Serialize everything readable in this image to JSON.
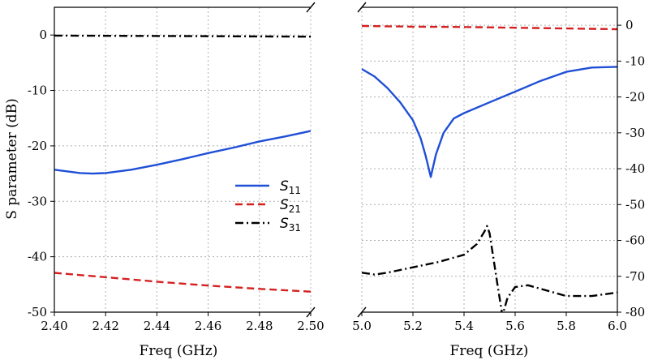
{
  "chart_data": {
    "type": "line",
    "ylabel": "S parameter (dB)",
    "ylim": [
      -50,
      5
    ],
    "grid": true,
    "legend": {
      "placement": "center",
      "entries": [
        {
          "symbol": "S",
          "subscript": "11",
          "color": "#1f4fd6",
          "dash": "solid"
        },
        {
          "symbol": "S",
          "subscript": "21",
          "color": "#d62020",
          "dash": "dashed"
        },
        {
          "symbol": "S",
          "subscript": "31",
          "color": "#000000",
          "dash": "dashdot"
        }
      ]
    },
    "panels": [
      {
        "name": "left",
        "xlabel": "Freq (GHz)",
        "xlim": [
          2.4,
          2.5
        ],
        "xticks": [
          "2.40",
          "2.42",
          "2.44",
          "2.46",
          "2.48",
          "2.50"
        ],
        "ylim": [
          -50,
          5
        ],
        "yticks": [
          "0",
          "-10",
          "-20",
          "-30",
          "-40",
          "-50"
        ],
        "ytick_side": "left",
        "series": [
          {
            "key": "S11",
            "x": [
              2.4,
              2.41,
              2.415,
              2.42,
              2.43,
              2.44,
              2.45,
              2.46,
              2.47,
              2.48,
              2.49,
              2.5
            ],
            "y": [
              -24.3,
              -24.9,
              -25.0,
              -24.9,
              -24.3,
              -23.4,
              -22.4,
              -21.3,
              -20.3,
              -19.2,
              -18.3,
              -17.3
            ]
          },
          {
            "key": "S21",
            "x": [
              2.4,
              2.42,
              2.44,
              2.46,
              2.48,
              2.5
            ],
            "y": [
              -42.9,
              -43.7,
              -44.5,
              -45.2,
              -45.8,
              -46.3
            ]
          },
          {
            "key": "S31",
            "x": [
              2.4,
              2.45,
              2.5
            ],
            "y": [
              -0.1,
              -0.2,
              -0.3
            ]
          }
        ]
      },
      {
        "name": "right",
        "xlabel": "Freq (GHz)",
        "xlim": [
          5.0,
          6.0
        ],
        "xticks": [
          "5.0",
          "5.2",
          "5.4",
          "5.6",
          "5.8",
          "6.0"
        ],
        "ylim": [
          -80,
          5
        ],
        "yticks": [
          "0",
          "-10",
          "-20",
          "-30",
          "-40",
          "-50",
          "-60",
          "-70",
          "-80"
        ],
        "ytick_side": "right",
        "series": [
          {
            "key": "S11",
            "x": [
              5.0,
              5.05,
              5.1,
              5.15,
              5.2,
              5.23,
              5.25,
              5.27,
              5.29,
              5.32,
              5.36,
              5.4,
              5.5,
              5.6,
              5.7,
              5.8,
              5.9,
              6.0
            ],
            "y": [
              -12.2,
              -14.3,
              -17.5,
              -21.5,
              -26.5,
              -31.5,
              -36.5,
              -42.3,
              -36.0,
              -30.0,
              -26.0,
              -24.5,
              -21.5,
              -18.5,
              -15.5,
              -13.0,
              -11.8,
              -11.6
            ]
          },
          {
            "key": "S21",
            "x": [
              5.0,
              5.2,
              5.4,
              5.6,
              5.8,
              6.0
            ],
            "y": [
              -0.2,
              -0.4,
              -0.5,
              -0.7,
              -0.9,
              -1.1
            ]
          },
          {
            "key": "S31",
            "x": [
              5.0,
              5.05,
              5.1,
              5.2,
              5.3,
              5.4,
              5.45,
              5.48,
              5.49,
              5.5,
              5.53,
              5.55,
              5.57,
              5.6,
              5.65,
              5.7,
              5.8,
              5.9,
              6.0
            ],
            "y": [
              -69.0,
              -69.5,
              -69.0,
              -67.5,
              -66.0,
              -64.0,
              -61.0,
              -57.5,
              -56.0,
              -58.0,
              -72.0,
              -81.0,
              -76.0,
              -73.0,
              -72.5,
              -73.5,
              -75.5,
              -75.5,
              -74.5
            ]
          }
        ]
      }
    ]
  },
  "colors": {
    "S11": "#1f4fd6",
    "S21": "#d62020",
    "S31": "#000000",
    "grid": "#b0b0b0"
  }
}
